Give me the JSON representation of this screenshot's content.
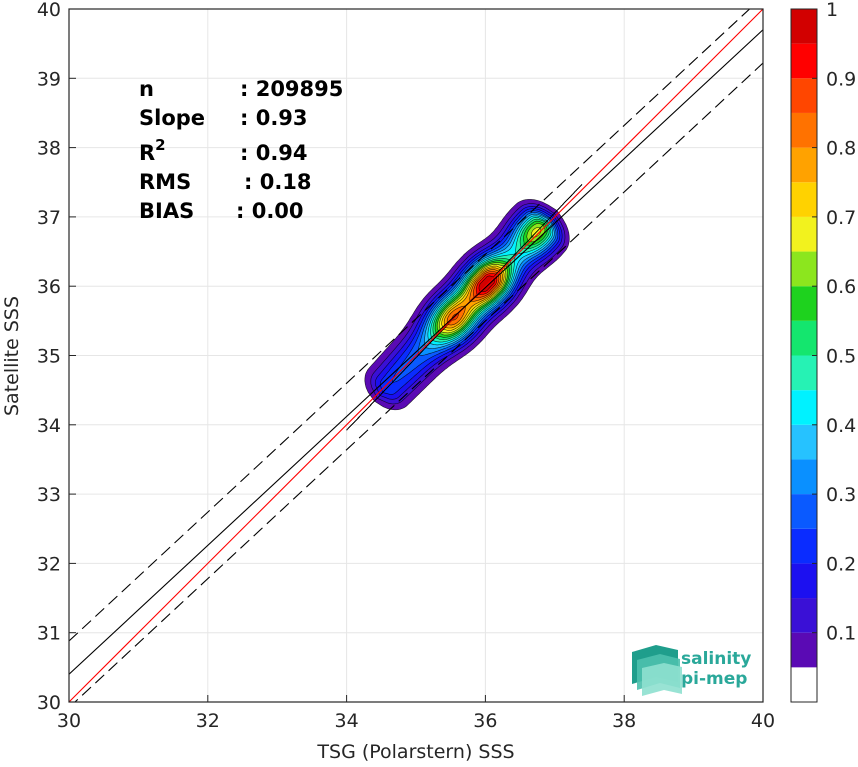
{
  "chart_data": {
    "type": "heatmap",
    "title": "",
    "xlabel": "TSG (Polarstern) SSS",
    "ylabel": "Satellite SSS",
    "xlim": [
      30,
      40
    ],
    "ylim": [
      30,
      40
    ],
    "xticks": [
      30,
      32,
      34,
      36,
      38,
      40
    ],
    "yticks": [
      30,
      31,
      32,
      33,
      34,
      35,
      36,
      37,
      38,
      39,
      40
    ],
    "grid": true,
    "lines": [
      {
        "name": "one-to-one",
        "color": "#ff0000",
        "style": "solid",
        "points": [
          [
            30,
            30
          ],
          [
            40,
            40
          ]
        ]
      },
      {
        "name": "regression",
        "color": "#000000",
        "style": "solid",
        "points": [
          [
            30,
            30.4
          ],
          [
            40,
            39.7
          ]
        ]
      },
      {
        "name": "upper-bound",
        "color": "#000000",
        "style": "dashed",
        "points": [
          [
            30,
            30.88
          ],
          [
            40,
            40.18
          ]
        ]
      },
      {
        "name": "lower-bound",
        "color": "#000000",
        "style": "dashed",
        "points": [
          [
            30,
            29.92
          ],
          [
            40,
            39.22
          ]
        ]
      }
    ],
    "density": {
      "axis_x": [
        34.6,
        36.8
      ],
      "axis_y": [
        34.55,
        36.85
      ],
      "peaks": [
        {
          "x": 36.07,
          "y": 36.02,
          "value": 1.0
        },
        {
          "x": 35.55,
          "y": 35.52,
          "value": 0.82
        },
        {
          "x": 36.78,
          "y": 36.75,
          "value": 0.72
        }
      ]
    },
    "colorbar": {
      "min": 0,
      "max": 1,
      "ticks": [
        0.1,
        0.2,
        0.3,
        0.4,
        0.5,
        0.6,
        0.7,
        0.8,
        0.9,
        1
      ],
      "tick_labels": [
        "0.1",
        "0.2",
        "0.3",
        "0.4",
        "0.5",
        "0.6",
        "0.7",
        "0.8",
        "0.9",
        "1"
      ],
      "levels": [
        0.05,
        0.1,
        0.15,
        0.2,
        0.25,
        0.3,
        0.35,
        0.4,
        0.45,
        0.5,
        0.55,
        0.6,
        0.65,
        0.7,
        0.75,
        0.8,
        0.85,
        0.9,
        0.95
      ],
      "colors": [
        "#ffffff",
        "#5a0ab4",
        "#3a10d6",
        "#1c10f0",
        "#0a2cff",
        "#0a5aff",
        "#0a90ff",
        "#26c2ff",
        "#00f2ff",
        "#26f2b4",
        "#14e66e",
        "#1ed21e",
        "#8ce61e",
        "#f2f21e",
        "#ffd200",
        "#ffa200",
        "#ff7200",
        "#ff4600",
        "#ff0000",
        "#d20000",
        "#8c0000"
      ]
    },
    "stats": [
      {
        "label": "n",
        "value": ": 209895"
      },
      {
        "label": "Slope",
        "value": ": 0.93"
      },
      {
        "label": "R",
        "sup": "2",
        "value": ": 0.94"
      },
      {
        "label": "RMS",
        "value": ": 0.18"
      },
      {
        "label": "BIAS",
        "value": ": 0.00"
      }
    ]
  },
  "logo": {
    "line1": "salinity",
    "line2": "pi-mep"
  }
}
